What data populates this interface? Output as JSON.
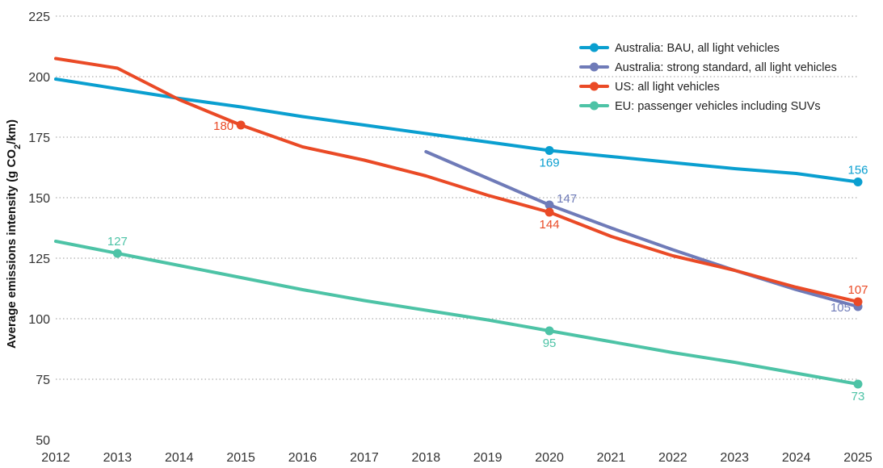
{
  "chart_data": {
    "type": "line",
    "title": "",
    "xlabel": "",
    "ylabel": "Average emissions intensity (g CO₂/km)",
    "ylabel_parts": {
      "before": "Average emissions intensity (g CO",
      "sub": "2",
      "after": "/km)"
    },
    "xlim": [
      2012,
      2025
    ],
    "ylim": [
      50,
      225
    ],
    "x_ticks": [
      2012,
      2013,
      2014,
      2015,
      2016,
      2017,
      2018,
      2019,
      2020,
      2021,
      2022,
      2023,
      2024,
      2025
    ],
    "y_ticks": [
      50,
      75,
      100,
      125,
      150,
      175,
      200,
      225
    ],
    "grid": "horizontal dotted",
    "legend_position": "top-right",
    "series": [
      {
        "name": "Australia: BAU, all light vehicles",
        "color": "#0a9fd0",
        "x": [
          2012,
          2013,
          2014,
          2015,
          2016,
          2017,
          2018,
          2019,
          2020,
          2021,
          2022,
          2023,
          2024,
          2025
        ],
        "values": [
          199,
          195,
          191,
          187.5,
          183.5,
          180,
          176.5,
          173,
          169.5,
          167,
          164.5,
          162,
          160,
          156.5
        ],
        "markers": [
          {
            "x": 2020,
            "y": 169.5,
            "label": "169",
            "label_pos": "below"
          },
          {
            "x": 2025,
            "y": 156.5,
            "label": "156",
            "label_pos": "above"
          }
        ]
      },
      {
        "name": "Australia: strong standard, all light vehicles",
        "color": "#6f7bb8",
        "x": [
          2018,
          2019,
          2020,
          2021,
          2022,
          2023,
          2024,
          2025
        ],
        "values": [
          169,
          158,
          147,
          137.5,
          128.5,
          120,
          112,
          105
        ],
        "markers": [
          {
            "x": 2020,
            "y": 147,
            "label": "147",
            "label_pos": "right"
          },
          {
            "x": 2025,
            "y": 105,
            "label": "105",
            "label_pos": "left"
          }
        ]
      },
      {
        "name": "US: all light vehicles",
        "color": "#ea4a26",
        "x": [
          2012,
          2013,
          2014,
          2015,
          2016,
          2017,
          2018,
          2019,
          2020,
          2021,
          2022,
          2023,
          2024,
          2025
        ],
        "values": [
          207.5,
          203.5,
          190.5,
          180,
          171,
          165.5,
          159,
          151,
          144,
          134,
          126,
          120,
          113,
          107
        ],
        "markers": [
          {
            "x": 2015,
            "y": 180,
            "label": "180",
            "label_pos": "left"
          },
          {
            "x": 2020,
            "y": 144,
            "label": "144",
            "label_pos": "below"
          },
          {
            "x": 2025,
            "y": 107,
            "label": "107",
            "label_pos": "above"
          }
        ]
      },
      {
        "name": "EU: passenger vehicles including SUVs",
        "color": "#4dc3a6",
        "x": [
          2012,
          2013,
          2014,
          2015,
          2016,
          2017,
          2018,
          2019,
          2020,
          2021,
          2022,
          2023,
          2024,
          2025
        ],
        "values": [
          132,
          127,
          122,
          117,
          112,
          107.5,
          103.5,
          99.5,
          95,
          90.5,
          86,
          82,
          77.5,
          73
        ],
        "markers": [
          {
            "x": 2013,
            "y": 127,
            "label": "127",
            "label_pos": "above"
          },
          {
            "x": 2020,
            "y": 95,
            "label": "95",
            "label_pos": "below"
          },
          {
            "x": 2025,
            "y": 73,
            "label": "73",
            "label_pos": "below"
          }
        ]
      }
    ]
  }
}
